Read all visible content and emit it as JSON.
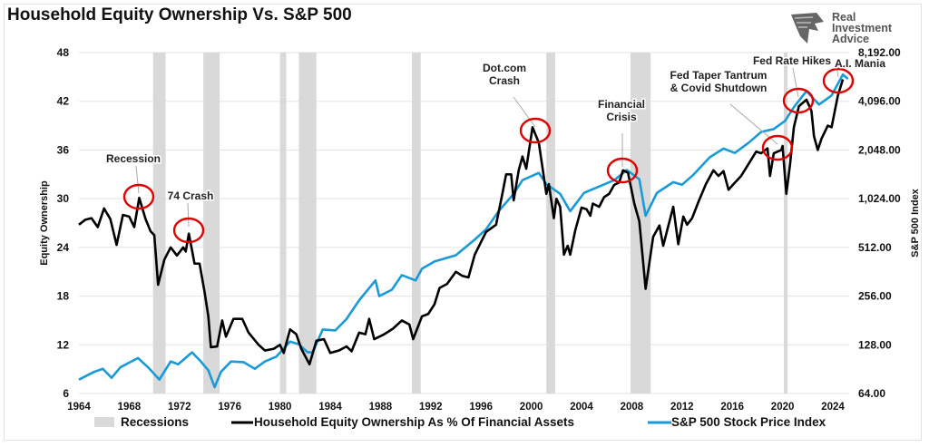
{
  "title": "Household Equity Ownership Vs. S&P 500",
  "logo": {
    "lines": [
      "Real",
      "Investment",
      "Advice"
    ],
    "icon": "eagle-head-icon"
  },
  "chart_data": {
    "type": "line",
    "title": "Household Equity Ownership Vs. S&P 500",
    "xlabel": "",
    "ylabel": "Equity Ownership",
    "y2label": "S&P 500 Index",
    "xlim": [
      1964,
      2025.3
    ],
    "ylim": [
      6,
      48
    ],
    "y2lim": [
      64,
      8192
    ],
    "y2scale": "log2",
    "x_ticks": [
      "1964",
      "1968",
      "1972",
      "1976",
      "1980",
      "1984",
      "1988",
      "1992",
      "1996",
      "2000",
      "2004",
      "2008",
      "2012",
      "2016",
      "2020",
      "2024"
    ],
    "y_ticks": [
      "6",
      "12",
      "18",
      "24",
      "30",
      "36",
      "42",
      "48"
    ],
    "y2_ticks": [
      "64.00",
      "128.00",
      "256.00",
      "512.00",
      "1,024.00",
      "2,048.00",
      "4,096.00",
      "8,192.00"
    ],
    "grid": true,
    "legend_position": "bottom",
    "legend": [
      "Recessions",
      "Household Equity Ownership As % Of Financial Assets",
      "S&P 500 Stock Price Index"
    ],
    "colors": {
      "recession": "#d9d9d9",
      "equity": "#000000",
      "sp500": "#1a9ad6",
      "annotation_circle": "#e00000"
    },
    "recessions": [
      [
        1969.9,
        1970.9
      ],
      [
        1973.9,
        1975.2
      ],
      [
        1980.0,
        1980.5
      ],
      [
        1981.5,
        1982.9
      ],
      [
        1990.5,
        1991.2
      ],
      [
        2001.2,
        2001.9
      ],
      [
        2007.9,
        2009.5
      ],
      [
        2020.1,
        2020.4
      ]
    ],
    "series": [
      {
        "name": "Household Equity Ownership As % Of Financial Assets",
        "axis": "left",
        "x": [
          1964,
          1964.5,
          1965,
          1965.5,
          1966,
          1966.5,
          1967,
          1967.5,
          1968,
          1968.4,
          1968.8,
          1969.3,
          1969.7,
          1970.0,
          1970.3,
          1970.8,
          1971.3,
          1971.8,
          1972.3,
          1972.5,
          1972.75,
          1973.2,
          1973.6,
          1974.0,
          1974.3,
          1974.5,
          1975.0,
          1975.4,
          1975.7,
          1976.3,
          1977.0,
          1977.5,
          1978.3,
          1978.8,
          1979.5,
          1980.0,
          1980.3,
          1980.8,
          1981.3,
          1981.7,
          1982.35,
          1982.9,
          1983.5,
          1984.0,
          1984.7,
          1985.3,
          1985.7,
          1986.3,
          1986.8,
          1987.1,
          1987.5,
          1988.3,
          1989.0,
          1989.7,
          1990.3,
          1990.6,
          1991.3,
          1991.8,
          1992.3,
          1992.7,
          1993.3,
          1994.0,
          1994.5,
          1995.0,
          1995.5,
          1996.4,
          1997.2,
          1997.7,
          1998.0,
          1998.4,
          1998.6,
          1999.0,
          1999.3,
          1999.6,
          2000.1,
          2000.6,
          2001.2,
          2001.4,
          2001.8,
          2002.0,
          2002.3,
          2002.6,
          2002.9,
          2003.1,
          2003.5,
          2004.0,
          2004.4,
          2004.7,
          2004.9,
          2005.4,
          2005.8,
          2006.2,
          2006.6,
          2007.0,
          2007.3,
          2007.7,
          2008.2,
          2008.6,
          2009.1,
          2009.7,
          2010.2,
          2010.5,
          2011.3,
          2011.7,
          2012.1,
          2012.4,
          2012.8,
          2013.3,
          2013.9,
          2014.5,
          2014.9,
          2015.3,
          2015.7,
          2016.1,
          2016.7,
          2017.3,
          2017.9,
          2018.3,
          2018.8,
          2019.0,
          2019.3,
          2019.9,
          2020.0,
          2020.3,
          2020.6,
          2020.9,
          2021.3,
          2021.9,
          2022.3,
          2022.5,
          2022.8,
          2023.1,
          2023.6,
          2023.9,
          2024.4,
          2024.8
        ],
        "values": [
          26.8,
          27.4,
          27.6,
          26.5,
          28.8,
          27.5,
          24.3,
          28.0,
          27.8,
          26.5,
          30.1,
          27.5,
          26.0,
          25.5,
          19.4,
          22.5,
          24.0,
          23.0,
          24.0,
          23.5,
          25.7,
          22.0,
          22.0,
          18.5,
          15.5,
          11.7,
          11.8,
          15.0,
          13.0,
          15.2,
          15.2,
          13.5,
          12.0,
          11.3,
          11.5,
          12.0,
          11.0,
          13.9,
          13.3,
          11.5,
          9.6,
          12.5,
          12.7,
          11.0,
          11.3,
          11.8,
          11.2,
          13.5,
          13.3,
          15.2,
          12.7,
          13.3,
          14.0,
          15.0,
          14.5,
          12.7,
          15.5,
          15.8,
          17.0,
          19.0,
          19.5,
          21.0,
          20.5,
          20.3,
          23.1,
          25.9,
          26.8,
          30.6,
          33.0,
          33.0,
          29.8,
          33.5,
          35.2,
          33.7,
          38.8,
          36.9,
          30.6,
          31.8,
          27.6,
          30.0,
          29.0,
          23.1,
          24.2,
          23.1,
          26.1,
          28.9,
          28.7,
          27.9,
          29.4,
          29.0,
          30.2,
          30.6,
          31.7,
          32.0,
          33.5,
          33.2,
          29.4,
          27.2,
          18.9,
          25.3,
          26.7,
          24.2,
          29.0,
          24.4,
          27.8,
          26.8,
          27.6,
          29.6,
          31.8,
          33.5,
          32.8,
          33.4,
          31.1,
          31.8,
          32.8,
          34.3,
          35.8,
          35.6,
          36.2,
          32.8,
          35.6,
          36.0,
          36.5,
          30.6,
          34.3,
          38.8,
          41.4,
          42.2,
          40.8,
          37.7,
          36.0,
          37.4,
          39.0,
          38.8,
          42.7,
          44.7
        ]
      },
      {
        "name": "S&P 500 Stock Price Index",
        "axis": "right",
        "x": [
          1964,
          1965.2,
          1965.9,
          1966.6,
          1967.3,
          1968.7,
          1969.5,
          1970.4,
          1971.3,
          1971.9,
          1973.0,
          1973.7,
          1974.3,
          1974.8,
          1975.3,
          1976.1,
          1977.1,
          1978.0,
          1978.8,
          1979.7,
          1980.8,
          1981.5,
          1982.2,
          1982.6,
          1983.4,
          1984.4,
          1985.3,
          1986.3,
          1987.6,
          1987.9,
          1988.9,
          1989.7,
          1990.8,
          1991.3,
          1992.3,
          1994.0,
          1995.5,
          1996.4,
          1997.4,
          1998.6,
          1999.3,
          2000.6,
          2001.2,
          2002.3,
          2003.1,
          2004.2,
          2005.4,
          2006.6,
          2007.6,
          2008.6,
          2009.1,
          2010.0,
          2011.3,
          2012.0,
          2012.9,
          2014.2,
          2015.3,
          2016.2,
          2017.3,
          2018.3,
          2019.3,
          2020.2,
          2020.9,
          2021.9,
          2022.9,
          2023.9,
          2024.8,
          2025.2
        ],
        "values": [
          78,
          87,
          91,
          80,
          93,
          106,
          93,
          78,
          101,
          97,
          115,
          101,
          89,
          70,
          87,
          101,
          100,
          91,
          101,
          108,
          134,
          129,
          115,
          115,
          159,
          157,
          185,
          241,
          320,
          256,
          280,
          345,
          320,
          378,
          419,
          458,
          572,
          662,
          857,
          1097,
          1333,
          1478,
          1260,
          1097,
          857,
          1112,
          1218,
          1333,
          1541,
          1351,
          803,
          1112,
          1296,
          1250,
          1438,
          1845,
          2090,
          1963,
          2270,
          2650,
          2760,
          3100,
          3770,
          4740,
          3910,
          4450,
          5990,
          5630
        ]
      }
    ],
    "annotations": [
      {
        "lines": [
          "Recession"
        ]
      },
      {
        "lines": [
          "74 Crash"
        ]
      },
      {
        "lines": [
          "Dot.com",
          "Crash"
        ]
      },
      {
        "lines": [
          "Financial",
          "Crisis"
        ]
      },
      {
        "lines": [
          "Fed Taper Tantrum",
          "& Covid Shutdown"
        ]
      },
      {
        "lines": [
          "Fed Rate Hikes"
        ]
      },
      {
        "lines": [
          "A.I. Mania"
        ]
      }
    ]
  }
}
